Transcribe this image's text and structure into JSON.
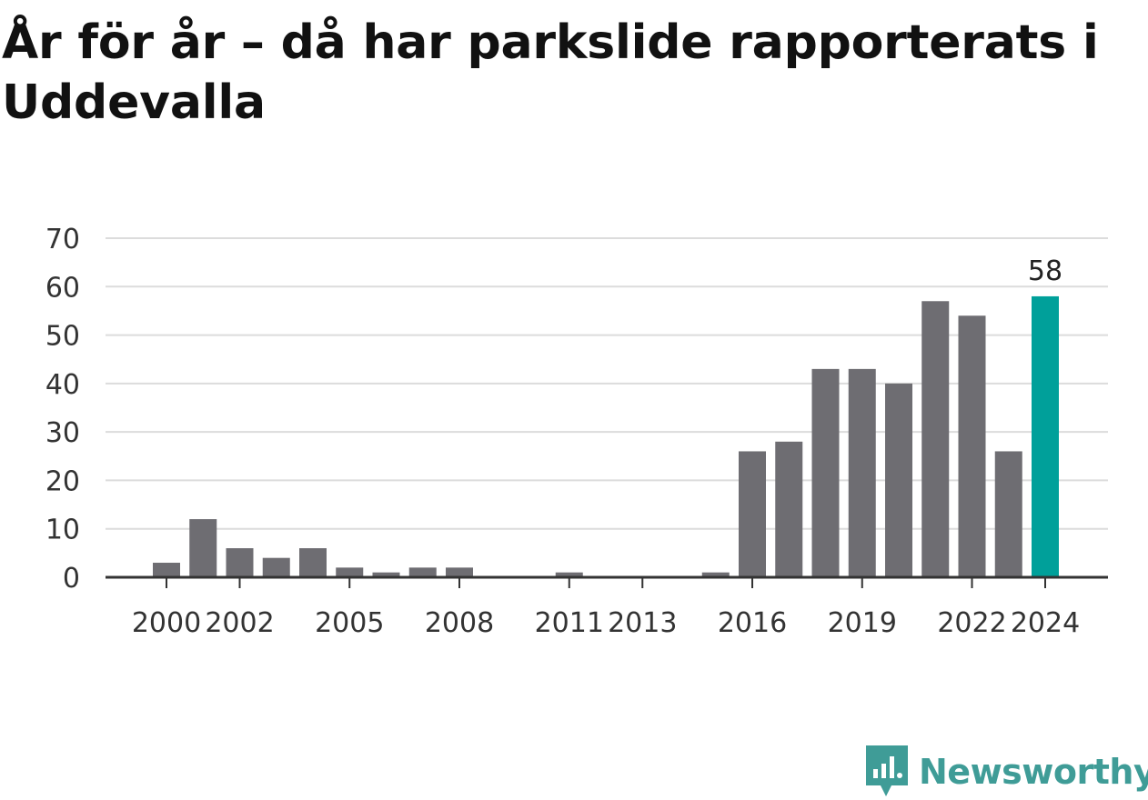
{
  "title": "År för år – då har parkslide rapporterats i Uddevalla",
  "brand": {
    "name": "Newsworthy",
    "icon": "newsworthy-logo-icon",
    "color": "#3f9c97"
  },
  "chart_data": {
    "type": "bar",
    "x": [
      2000,
      2001,
      2002,
      2003,
      2004,
      2005,
      2006,
      2007,
      2008,
      2009,
      2010,
      2011,
      2012,
      2013,
      2014,
      2015,
      2016,
      2017,
      2018,
      2019,
      2020,
      2021,
      2022,
      2023,
      2024
    ],
    "values": [
      3,
      12,
      6,
      4,
      6,
      2,
      1,
      2,
      2,
      0,
      0,
      1,
      0,
      0,
      0,
      1,
      26,
      28,
      43,
      43,
      40,
      57,
      54,
      26,
      58
    ],
    "xticks": [
      "2000",
      "2002",
      "2005",
      "2008",
      "2011",
      "2013",
      "2016",
      "2019",
      "2022",
      "2024"
    ],
    "yticks": [
      "0",
      "10",
      "20",
      "30",
      "40",
      "50",
      "60",
      "70"
    ],
    "ylim": [
      0,
      70
    ],
    "highlight": {
      "x": 2024,
      "label": "58",
      "color": "#00a09a"
    },
    "bar_color": "#6e6d72",
    "grid": true,
    "legend": "none"
  }
}
